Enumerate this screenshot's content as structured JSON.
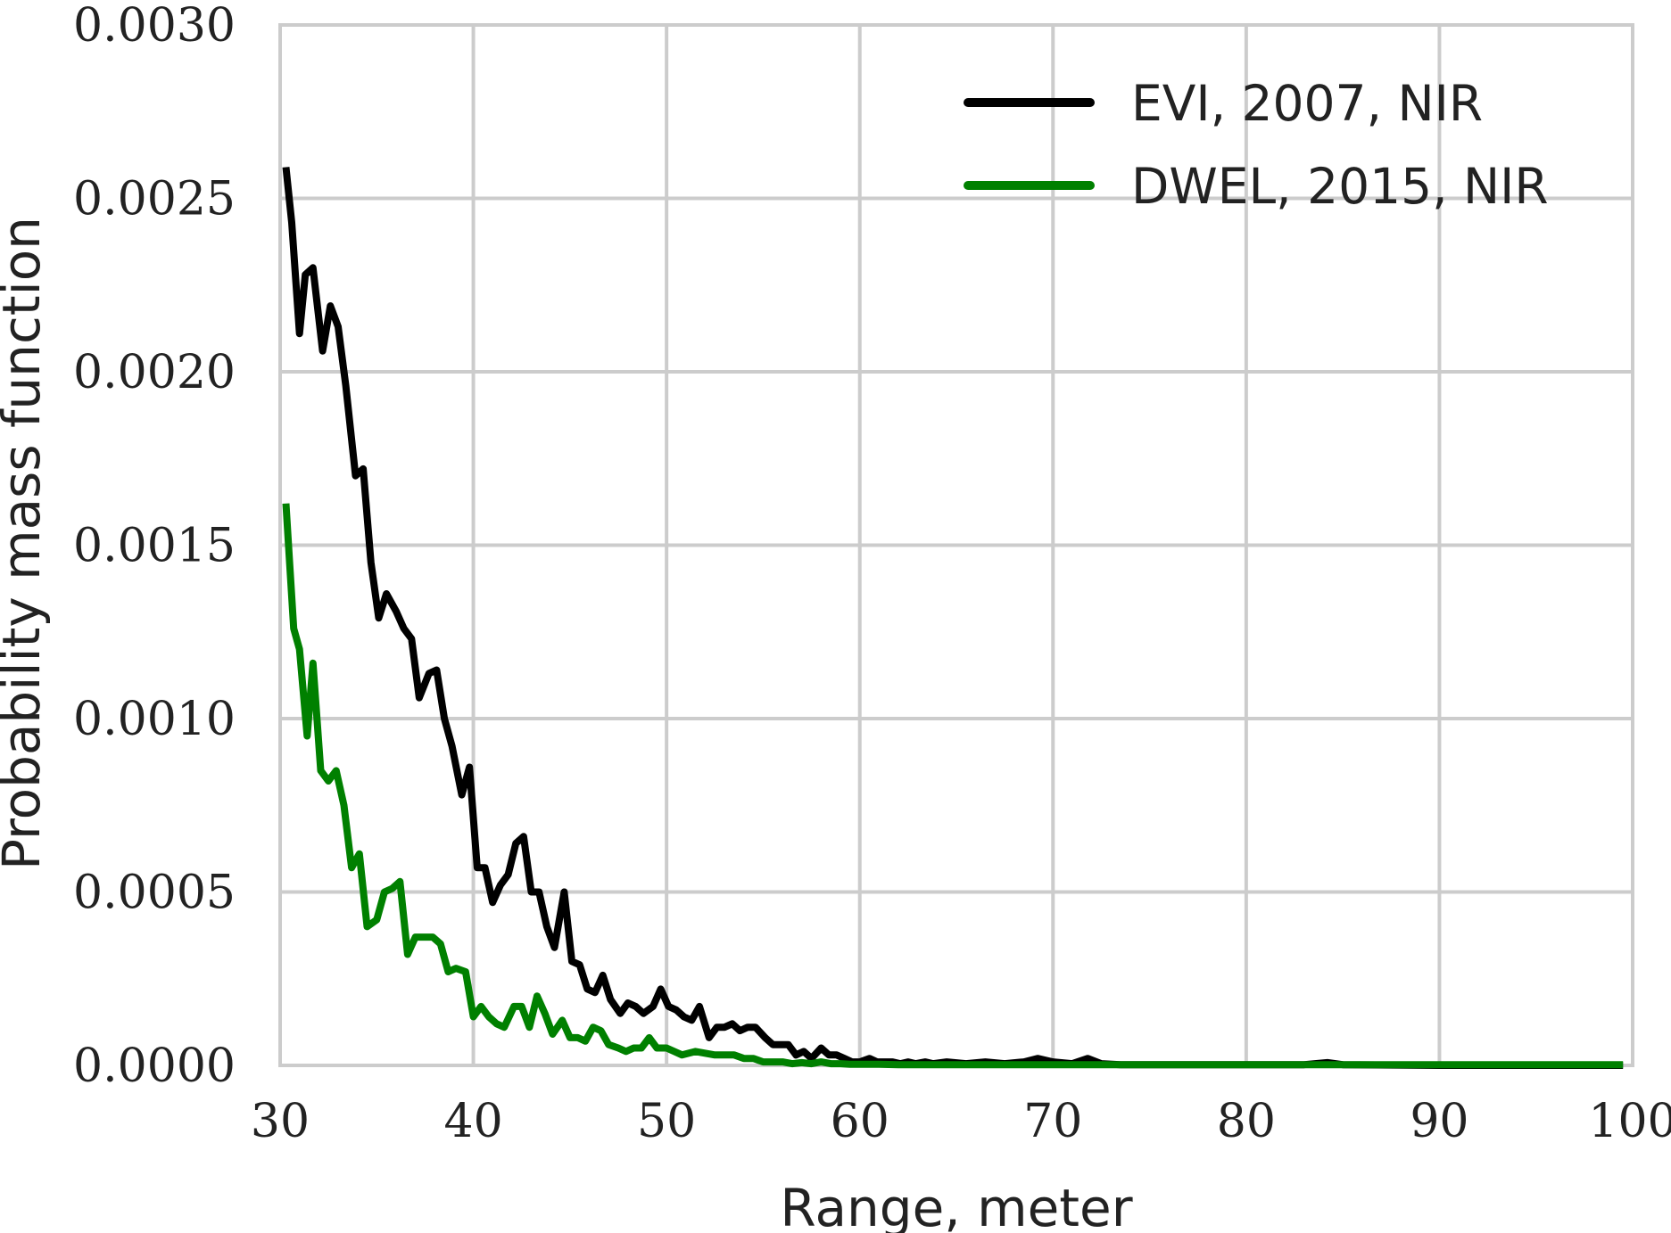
{
  "chart_data": {
    "type": "line",
    "title": "",
    "xlabel": "Range, meter",
    "ylabel": "Probability mass function",
    "xlim": [
      30,
      100
    ],
    "ylim": [
      0.0,
      0.003
    ],
    "xticks": [
      30,
      40,
      50,
      60,
      70,
      80,
      90,
      100
    ],
    "xtick_labels": [
      "30",
      "40",
      "50",
      "60",
      "70",
      "80",
      "90",
      "100"
    ],
    "yticks": [
      0.0,
      0.0005,
      0.001,
      0.0015,
      0.002,
      0.0025,
      0.003
    ],
    "ytick_labels": [
      "0.0000",
      "0.0005",
      "0.0010",
      "0.0015",
      "0.0020",
      "0.0025",
      "0.0030"
    ],
    "grid": true,
    "legend_position": "top-right",
    "series": [
      {
        "name": "EVI, 2007, NIR",
        "color": "#000000",
        "x": [
          30.3,
          30.6,
          31.0,
          31.3,
          31.7,
          32.2,
          32.6,
          33.0,
          33.4,
          33.9,
          34.3,
          34.7,
          35.1,
          35.5,
          36.0,
          36.4,
          36.8,
          37.2,
          37.7,
          38.1,
          38.5,
          38.9,
          39.4,
          39.8,
          40.2,
          40.6,
          41.0,
          41.4,
          41.8,
          42.2,
          42.6,
          43.0,
          43.4,
          43.8,
          44.2,
          44.7,
          45.1,
          45.5,
          45.9,
          46.3,
          46.7,
          47.1,
          47.6,
          48.0,
          48.4,
          48.8,
          49.3,
          49.7,
          50.1,
          50.5,
          50.9,
          51.3,
          51.7,
          52.2,
          52.6,
          53.0,
          53.4,
          53.8,
          54.2,
          54.6,
          55.1,
          55.5,
          55.9,
          56.3,
          56.7,
          57.1,
          57.5,
          58.0,
          58.4,
          58.8,
          59.2,
          59.6,
          60.0,
          60.5,
          60.9,
          61.3,
          61.7,
          62.1,
          62.5,
          62.9,
          63.4,
          63.8,
          64.5,
          65.5,
          66.5,
          67.5,
          68.5,
          69.2,
          70.0,
          71.0,
          71.8,
          72.5,
          73.5,
          75.0,
          77.0,
          80.0,
          83.0,
          84.2,
          85.0,
          90.0,
          95.0,
          99.5
        ],
        "y": [
          0.00259,
          0.00243,
          0.00211,
          0.00228,
          0.0023,
          0.00206,
          0.00219,
          0.00213,
          0.00196,
          0.0017,
          0.00172,
          0.00145,
          0.00129,
          0.00136,
          0.00131,
          0.00126,
          0.00123,
          0.00106,
          0.00113,
          0.00114,
          0.001,
          0.00092,
          0.00078,
          0.00086,
          0.00057,
          0.00057,
          0.00047,
          0.00052,
          0.00055,
          0.00064,
          0.00066,
          0.0005,
          0.0005,
          0.0004,
          0.00034,
          0.0005,
          0.0003,
          0.00029,
          0.00022,
          0.00021,
          0.00026,
          0.00019,
          0.00015,
          0.00018,
          0.00017,
          0.00015,
          0.00017,
          0.00022,
          0.00017,
          0.00016,
          0.00014,
          0.00013,
          0.00017,
          8e-05,
          0.00011,
          0.00011,
          0.00012,
          0.0001,
          0.00011,
          0.00011,
          8e-05,
          6e-05,
          6e-05,
          6e-05,
          3e-05,
          4e-05,
          2e-05,
          5e-05,
          3e-05,
          3e-05,
          2e-05,
          1e-05,
          1e-05,
          2e-05,
          1e-05,
          1e-05,
          1e-05,
          5e-06,
          1e-05,
          5e-06,
          1e-05,
          5e-06,
          1e-05,
          5e-06,
          1e-05,
          5e-06,
          1e-05,
          2e-05,
          1e-05,
          5e-06,
          2e-05,
          5e-06,
          2e-06,
          2e-06,
          2e-06,
          2e-06,
          2e-06,
          8e-06,
          2e-06,
          0.0,
          0.0,
          0.0
        ]
      },
      {
        "name": "DWEL, 2015, NIR",
        "color": "#008000",
        "x": [
          30.3,
          30.7,
          31.0,
          31.4,
          31.7,
          32.1,
          32.5,
          32.9,
          33.3,
          33.7,
          34.1,
          34.5,
          35.0,
          35.4,
          35.8,
          36.2,
          36.6,
          37.0,
          37.5,
          37.9,
          38.3,
          38.7,
          39.1,
          39.6,
          40.0,
          40.4,
          40.8,
          41.2,
          41.6,
          42.1,
          42.5,
          42.9,
          43.3,
          43.7,
          44.1,
          44.6,
          45.0,
          45.4,
          45.8,
          46.2,
          46.6,
          47.0,
          47.5,
          47.9,
          48.3,
          48.7,
          49.1,
          49.5,
          50.0,
          50.4,
          50.8,
          51.5,
          52.5,
          53.5,
          54.0,
          54.5,
          55.0,
          55.5,
          56.0,
          56.5,
          57.0,
          57.5,
          58.0,
          58.5,
          59.0,
          59.5,
          60.0,
          61.0,
          62.0,
          63.0,
          65.0,
          70.0,
          75.0,
          80.0,
          85.0,
          90.0,
          95.0,
          99.5
        ],
        "y": [
          0.00162,
          0.00126,
          0.0012,
          0.00095,
          0.00116,
          0.00085,
          0.00082,
          0.00085,
          0.00075,
          0.00057,
          0.00061,
          0.0004,
          0.00042,
          0.0005,
          0.00051,
          0.00053,
          0.00032,
          0.00037,
          0.00037,
          0.00037,
          0.00035,
          0.00027,
          0.00028,
          0.00027,
          0.00014,
          0.00017,
          0.00014,
          0.00012,
          0.00011,
          0.00017,
          0.00017,
          0.00011,
          0.0002,
          0.00015,
          9e-05,
          0.00013,
          8e-05,
          8e-05,
          7e-05,
          0.00011,
          0.0001,
          6e-05,
          5e-05,
          4e-05,
          5e-05,
          5e-05,
          8e-05,
          5e-05,
          5e-05,
          4e-05,
          3e-05,
          4e-05,
          3e-05,
          3e-05,
          2e-05,
          2e-05,
          1e-05,
          1e-05,
          1e-05,
          5e-06,
          8e-06,
          5e-06,
          1e-05,
          5e-06,
          5e-06,
          3e-06,
          3e-06,
          3e-06,
          2e-06,
          2e-06,
          2e-06,
          2e-06,
          2e-06,
          2e-06,
          2e-06,
          2e-06,
          2e-06,
          2e-06
        ]
      }
    ]
  }
}
